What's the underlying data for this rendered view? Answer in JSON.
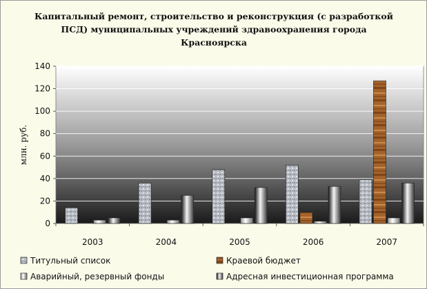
{
  "chart_data": {
    "type": "bar",
    "title": "Капитальный ремонт, строительство и реконструкция (с разработкой ПСД) муниципальных учреждений здравоохранения города Красноярска",
    "ylabel": "млн. руб.",
    "xlabel": "",
    "categories": [
      "2003",
      "2004",
      "2005",
      "2006",
      "2007"
    ],
    "ylim": [
      0,
      140
    ],
    "yticks": [
      0,
      20,
      40,
      60,
      80,
      100,
      120,
      140
    ],
    "grid": true,
    "legend_position": "bottom",
    "series": [
      {
        "name": "Титульный список",
        "values": [
          14,
          36,
          48,
          52,
          39
        ],
        "color": "#b4b8c0"
      },
      {
        "name": "Краевой бюджет",
        "values": [
          0,
          0,
          0,
          10,
          127
        ],
        "color": "#9c5a24"
      },
      {
        "name": "Аварийный, резервный фонды",
        "values": [
          3,
          3,
          5,
          2,
          5
        ],
        "color": "#e0e0e0"
      },
      {
        "name": "Адресная инвестиционная программа",
        "values": [
          5,
          25,
          32,
          33,
          36
        ],
        "color": "#c8c8c8"
      }
    ]
  }
}
